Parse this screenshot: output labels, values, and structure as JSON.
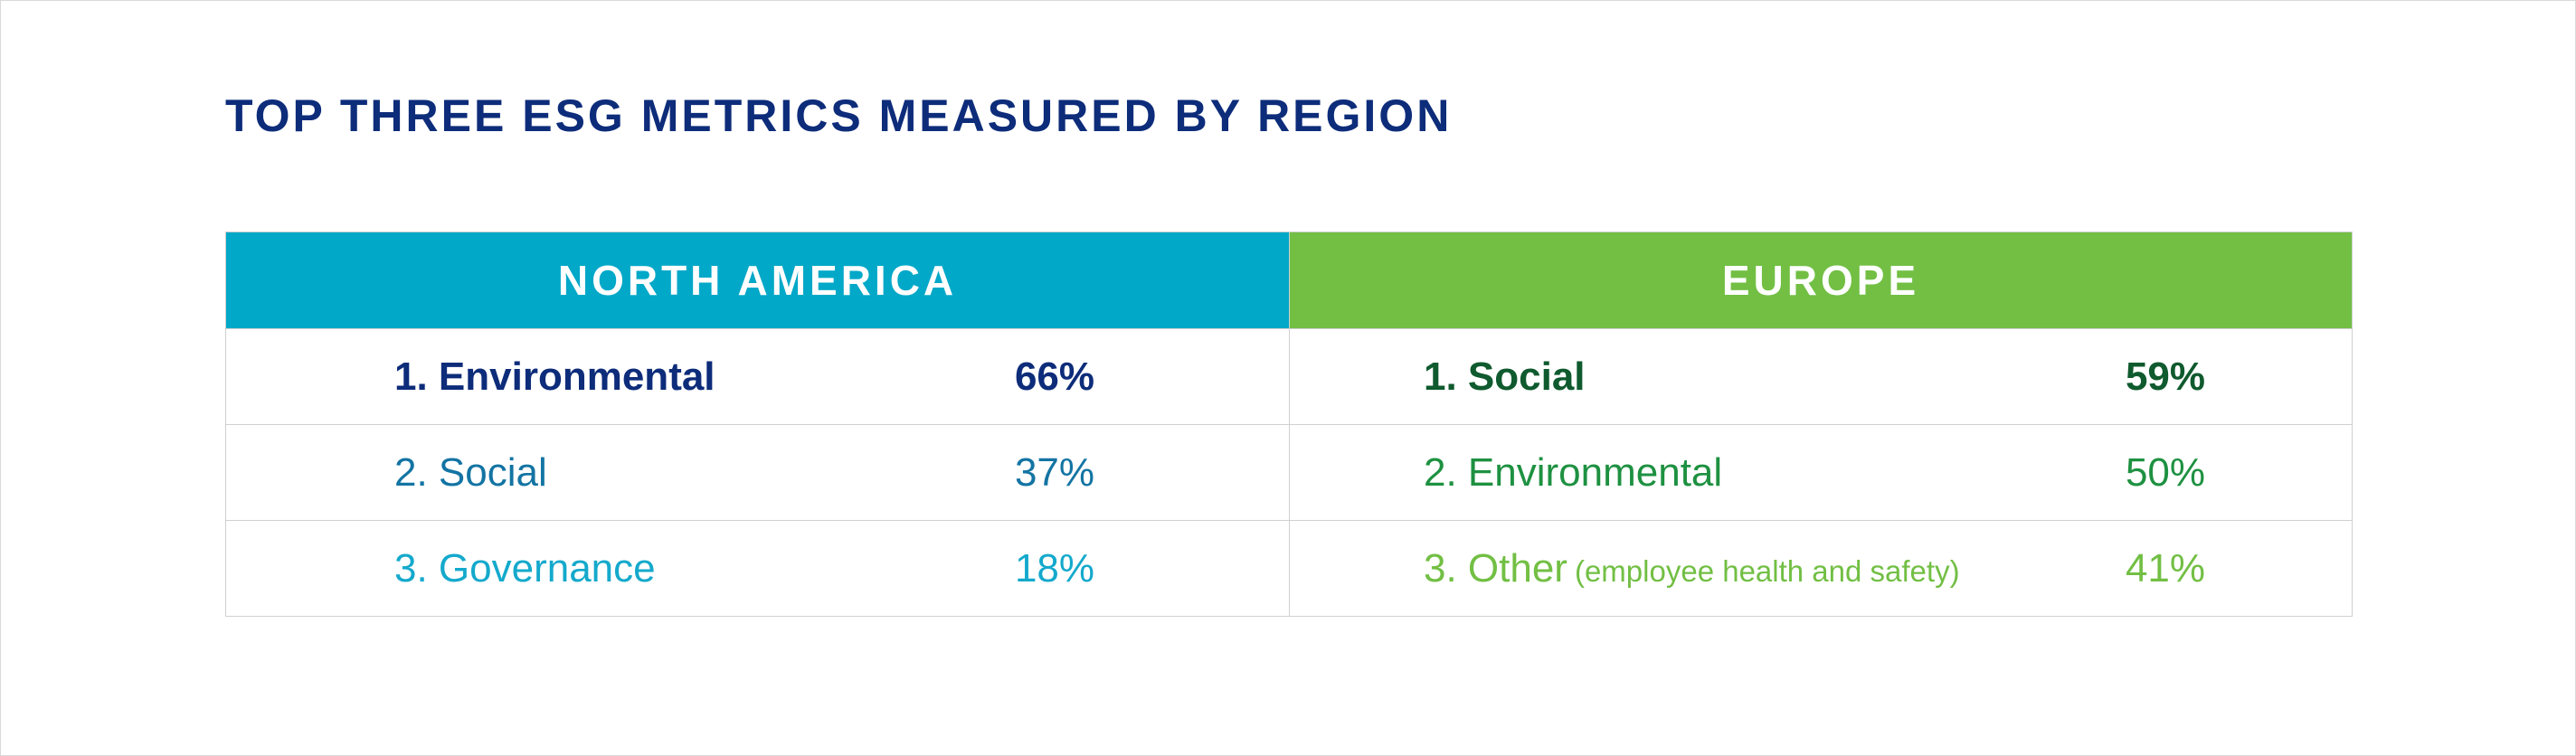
{
  "chart_data": {
    "type": "table",
    "title": "TOP THREE ESG METRICS MEASURED BY REGION",
    "columns": [
      "NORTH AMERICA",
      "EUROPE"
    ],
    "regions": [
      {
        "name": "NORTH AMERICA",
        "header_color": "#02a8c8",
        "rows": [
          {
            "label": "1. Environmental",
            "note": "",
            "value": "66%",
            "color": "#0d2c7a",
            "bold": true
          },
          {
            "label": "2. Social",
            "note": "",
            "value": "37%",
            "color": "#1374a3",
            "bold": false
          },
          {
            "label": "3. Governance",
            "note": "",
            "value": "18%",
            "color": "#14a9cc",
            "bold": false
          }
        ]
      },
      {
        "name": "EUROPE",
        "header_color": "#72bf44",
        "rows": [
          {
            "label": "1. Social",
            "note": "",
            "value": "59%",
            "color": "#0f5a2e",
            "bold": true
          },
          {
            "label": "2. Environmental",
            "note": "",
            "value": "50%",
            "color": "#1e9141",
            "bold": false
          },
          {
            "label": "3. Other",
            "note": "(employee health and safety)",
            "value": "41%",
            "color": "#72bf44",
            "bold": false
          }
        ]
      }
    ]
  }
}
